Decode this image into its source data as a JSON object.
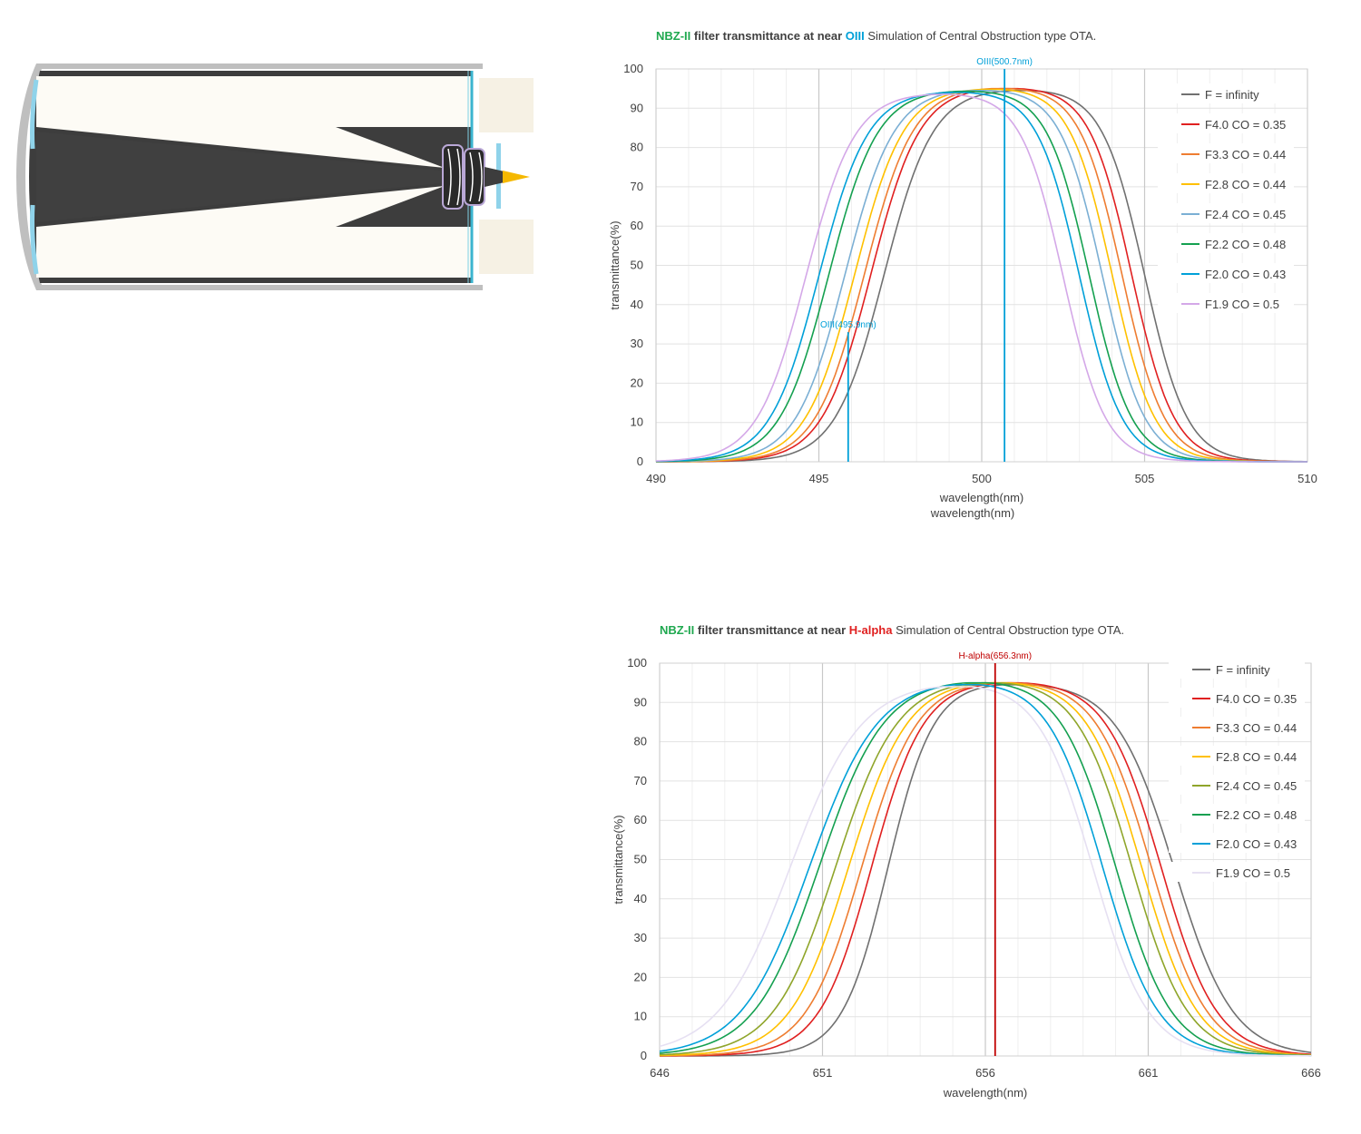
{
  "charts": [
    {
      "title_parts": [
        {
          "text": "NBZ-II",
          "color": "#1fa84f",
          "bold": true
        },
        {
          "text": " filter transmittance at near ",
          "color": "#404040",
          "bold": true
        },
        {
          "text": "OIII",
          "color": "#00a0d8",
          "bold": true
        },
        {
          "text": "   Simulation of Central Obstruction type OTA.",
          "color": "#404040",
          "bold": false
        }
      ]
    },
    {
      "title_parts": [
        {
          "text": "NBZ-II",
          "color": "#1fa84f",
          "bold": true
        },
        {
          "text": " filter transmittance at near ",
          "color": "#404040",
          "bold": true
        },
        {
          "text": "H-alpha",
          "color": "#e02020",
          "bold": true
        },
        {
          "text": "   Simulation of Central Obstruction type OTA.",
          "color": "#404040",
          "bold": false
        }
      ]
    }
  ],
  "chart_data": [
    {
      "type": "line",
      "title": "NBZ-II filter transmittance at near OIII   Simulation of Central Obstruction type OTA.",
      "xlabel": "wavelength(nm)",
      "xlabel_extra": "wavelength(nm)",
      "ylabel": "transmittance(%)",
      "xlim": [
        490,
        510
      ],
      "ylim": [
        0,
        100
      ],
      "xticks": [
        490,
        495,
        500,
        505,
        510
      ],
      "yticks": [
        0,
        10,
        20,
        30,
        40,
        50,
        60,
        70,
        80,
        90,
        100
      ],
      "grid": true,
      "legend_position": "top-right",
      "annotations": [
        {
          "label": "OIII(500.7nm)",
          "x": 500.7,
          "color": "#00a0d8",
          "y_top": 100
        },
        {
          "label": "OIII(495.9nm)",
          "x": 495.9,
          "color": "#00a0d8",
          "y_top": 33
        }
      ],
      "series": [
        {
          "name": "F = infinity",
          "color": "#707070",
          "peak": 94.5,
          "left_half": 497.0,
          "right_half": 505.0,
          "left_slope": 0.75,
          "right_slope": 0.65
        },
        {
          "name": "F4.0 CO = 0.35",
          "color": "#e02020",
          "peak": 95.0,
          "left_half": 496.6,
          "right_half": 504.6,
          "left_slope": 0.75,
          "right_slope": 0.65
        },
        {
          "name": "F3.3 CO = 0.44",
          "color": "#ee7d31",
          "peak": 95.0,
          "left_half": 496.4,
          "right_half": 504.3,
          "left_slope": 0.75,
          "right_slope": 0.65
        },
        {
          "name": "F2.8 CO = 0.44",
          "color": "#ffc000",
          "peak": 94.8,
          "left_half": 496.1,
          "right_half": 504.0,
          "left_slope": 0.75,
          "right_slope": 0.65
        },
        {
          "name": "F2.4 CO = 0.45",
          "color": "#7bafd4",
          "peak": 94.5,
          "left_half": 495.8,
          "right_half": 503.7,
          "left_slope": 0.75,
          "right_slope": 0.65
        },
        {
          "name": "F2.2 CO = 0.48",
          "color": "#14a050",
          "peak": 94.3,
          "left_half": 495.3,
          "right_half": 503.3,
          "left_slope": 0.75,
          "right_slope": 0.65
        },
        {
          "name": "F2.0 CO = 0.43",
          "color": "#00a0d8",
          "peak": 94.0,
          "left_half": 495.0,
          "right_half": 503.0,
          "left_slope": 0.75,
          "right_slope": 0.65
        },
        {
          "name": "F1.9 CO = 0.5",
          "color": "#d4a8e8",
          "peak": 93.5,
          "left_half": 494.6,
          "right_half": 502.5,
          "left_slope": 0.75,
          "right_slope": 0.65
        }
      ]
    },
    {
      "type": "line",
      "title": "NBZ-II filter transmittance at near H-alpha   Simulation of Central Obstruction type OTA.",
      "xlabel": "wavelength(nm)",
      "ylabel": "transmittance(%)",
      "xlim": [
        646,
        666
      ],
      "ylim": [
        0,
        100
      ],
      "xticks": [
        646,
        651,
        656,
        661,
        666
      ],
      "yticks": [
        0,
        10,
        20,
        30,
        40,
        50,
        60,
        70,
        80,
        90,
        100
      ],
      "grid": true,
      "legend_position": "top-right",
      "annotations": [
        {
          "label": "H-alpha(656.3nm)",
          "x": 656.3,
          "color": "#c00000",
          "y_top": 100
        }
      ],
      "series": [
        {
          "name": "F = infinity",
          "color": "#707070",
          "peak": 94.5,
          "left_half": 653.0,
          "right_half": 661.8,
          "left_slope": 0.7,
          "right_slope": 0.9
        },
        {
          "name": "F4.0 CO = 0.35",
          "color": "#e02020",
          "peak": 95.0,
          "left_half": 652.5,
          "right_half": 661.4,
          "left_slope": 0.8,
          "right_slope": 0.85
        },
        {
          "name": "F3.3 CO = 0.44",
          "color": "#ee7d31",
          "peak": 95.0,
          "left_half": 652.2,
          "right_half": 661.1,
          "left_slope": 0.85,
          "right_slope": 0.85
        },
        {
          "name": "F2.8 CO = 0.44",
          "color": "#ffc000",
          "peak": 95.0,
          "left_half": 651.8,
          "right_half": 660.8,
          "left_slope": 0.9,
          "right_slope": 0.85
        },
        {
          "name": "F2.4 CO = 0.45",
          "color": "#8fa52a",
          "peak": 95.0,
          "left_half": 651.4,
          "right_half": 660.5,
          "left_slope": 0.95,
          "right_slope": 0.85
        },
        {
          "name": "F2.2 CO = 0.48",
          "color": "#14a050",
          "peak": 95.0,
          "left_half": 650.9,
          "right_half": 660.0,
          "left_slope": 1.0,
          "right_slope": 0.85
        },
        {
          "name": "F2.0 CO = 0.43",
          "color": "#00a0d8",
          "peak": 94.5,
          "left_half": 650.6,
          "right_half": 659.6,
          "left_slope": 1.05,
          "right_slope": 0.85
        },
        {
          "name": "F1.9 CO = 0.5",
          "color": "#e6e0f2",
          "peak": 94.0,
          "left_half": 650.0,
          "right_half": 659.3,
          "left_slope": 1.1,
          "right_slope": 0.85
        }
      ]
    }
  ]
}
